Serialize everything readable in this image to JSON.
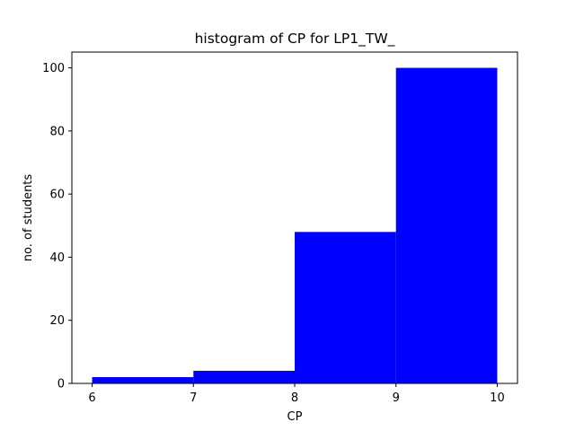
{
  "chart_data": {
    "type": "bar",
    "title": "histogram of CP for LP1_TW_",
    "xlabel": "CP",
    "ylabel": "no. of students",
    "bins": [
      {
        "start": 6,
        "end": 7,
        "count": 2
      },
      {
        "start": 7,
        "end": 8,
        "count": 4
      },
      {
        "start": 8,
        "end": 9,
        "count": 48
      },
      {
        "start": 9,
        "end": 10,
        "count": 100
      }
    ],
    "xticks": [
      6,
      7,
      8,
      9,
      10
    ],
    "yticks": [
      0,
      20,
      40,
      60,
      80,
      100
    ],
    "xlim": [
      5.8,
      10.2
    ],
    "ylim": [
      0,
      105
    ],
    "bar_color": "#0000ff",
    "grid": false,
    "legend": "none"
  }
}
